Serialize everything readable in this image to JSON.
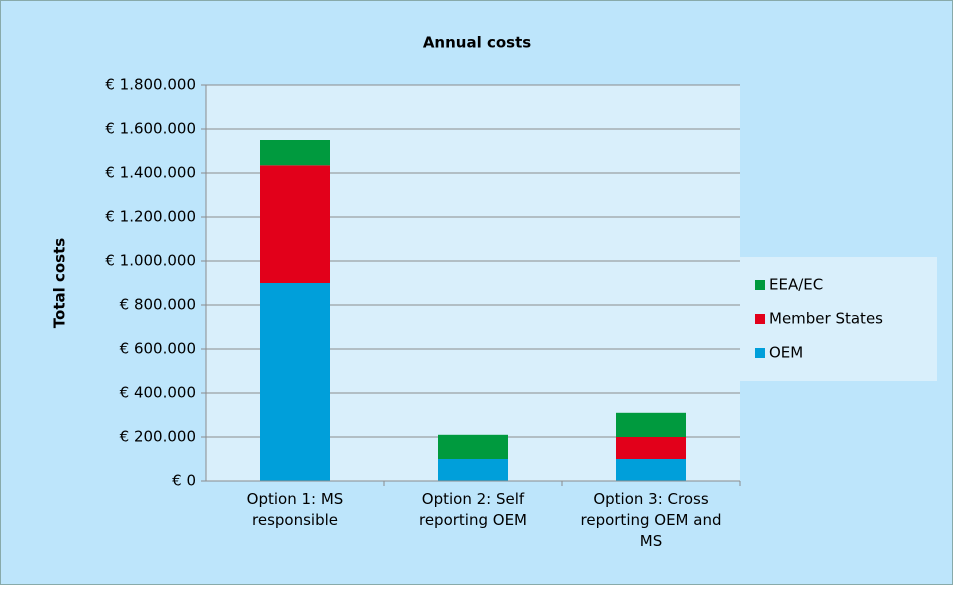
{
  "chart_data": {
    "type": "stacked_bar",
    "title": "Annual costs",
    "y_label": "Total costs",
    "categories": [
      "Option 1: MS responsible",
      "Option 2: Self reporting OEM",
      "Option 3: Cross reporting OEM and MS"
    ],
    "series": [
      {
        "name": "OEM",
        "color": "#009fda",
        "values": [
          900000,
          100000,
          100000
        ]
      },
      {
        "name": "Member States",
        "color": "#e2001a",
        "values": [
          535000,
          0,
          100000
        ]
      },
      {
        "name": "EEA/EC",
        "color": "#009a3e",
        "values": [
          115000,
          110000,
          110000
        ]
      }
    ],
    "ylim": [
      0,
      1800000
    ],
    "yticks": [
      {
        "value": 0,
        "label": "€ 0"
      },
      {
        "value": 200000,
        "label": "€ 200.000"
      },
      {
        "value": 400000,
        "label": "€ 400.000"
      },
      {
        "value": 600000,
        "label": "€ 600.000"
      },
      {
        "value": 800000,
        "label": "€ 800.000"
      },
      {
        "value": 1000000,
        "label": "€ 1.000.000"
      },
      {
        "value": 1200000,
        "label": "€ 1.200.000"
      },
      {
        "value": 1400000,
        "label": "€ 1.400.000"
      },
      {
        "value": 1600000,
        "label": "€ 1.600.000"
      },
      {
        "value": 1800000,
        "label": "€ 1.800.000"
      }
    ],
    "grid": true,
    "legend": "right"
  }
}
